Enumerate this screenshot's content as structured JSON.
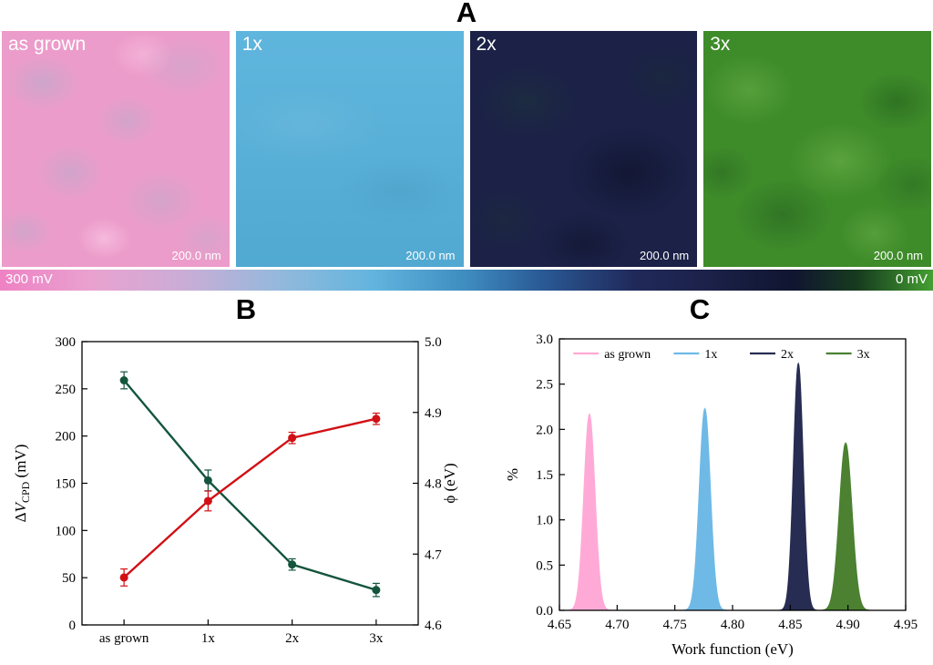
{
  "labels": {
    "a": "A",
    "b": "B",
    "c": "C"
  },
  "panel_a": {
    "images": [
      {
        "label": "as grown",
        "scalebar": "200.0 nm",
        "base_color": "#ec9cca"
      },
      {
        "label": "1x",
        "scalebar": "200.0 nm",
        "base_color": "#55b1db"
      },
      {
        "label": "2x",
        "scalebar": "200.0 nm",
        "base_color": "#1b2147"
      },
      {
        "label": "3x",
        "scalebar": "200.0 nm",
        "base_color": "#3e8b2a"
      }
    ],
    "colorbar": {
      "left_label": "300 mV",
      "right_label": "0 mV"
    }
  },
  "chart_data": [
    {
      "type": "line",
      "panel": "B",
      "categories": [
        "as grown",
        "1x",
        "2x",
        "3x"
      ],
      "left_axis": {
        "label_parts": {
          "pre": "Δ",
          "var": "V",
          "sub": "CPD",
          "post": " (mV)"
        },
        "lim": [
          0,
          300
        ],
        "ticks": [
          "0",
          "50",
          "100",
          "150",
          "200",
          "250",
          "300"
        ],
        "color": "#1b6a43"
      },
      "right_axis": {
        "label": "ϕ (eV)",
        "lim": [
          4.6,
          5.0
        ],
        "ticks": [
          "4.6",
          "4.7",
          "4.8",
          "4.9",
          "5.0"
        ],
        "color": "#d11015"
      },
      "series": [
        {
          "name": "delta-V-CPD",
          "axis": "left",
          "color": "#14553d",
          "values": [
            259,
            153,
            64,
            37
          ],
          "errors": [
            9,
            11,
            6,
            7
          ]
        },
        {
          "name": "work-function-phi",
          "axis": "right",
          "color": "#d11015",
          "values": [
            4.667,
            4.775,
            4.864,
            4.891
          ],
          "errors": [
            0.012,
            0.014,
            0.008,
            0.008
          ]
        }
      ],
      "grid": false
    },
    {
      "type": "area",
      "panel": "C",
      "xlabel": "Work function (eV)",
      "ylabel": "%",
      "xlim": [
        4.65,
        4.95
      ],
      "ylim": [
        0.0,
        3.0
      ],
      "x_ticks": [
        "4.65",
        "4.70",
        "4.75",
        "4.80",
        "4.85",
        "4.90",
        "4.95"
      ],
      "y_ticks": [
        "0.0",
        "0.5",
        "1.0",
        "1.5",
        "2.0",
        "2.5",
        "3.0"
      ],
      "legend": [
        "as grown",
        "1x",
        "2x",
        "3x"
      ],
      "legend_position": "top-inside",
      "peaks": [
        {
          "name": "as grown",
          "center": 4.676,
          "height": 2.17,
          "sigma": 0.0048,
          "color": "#ffaad6"
        },
        {
          "name": "1x",
          "center": 4.776,
          "height": 2.23,
          "sigma": 0.0048,
          "color": "#6fb9e6"
        },
        {
          "name": "2x",
          "center": 4.857,
          "height": 2.73,
          "sigma": 0.0042,
          "color": "#272c52"
        },
        {
          "name": "3x",
          "center": 4.898,
          "height": 1.85,
          "sigma": 0.0055,
          "color": "#4b8130"
        }
      ],
      "grid": false
    }
  ]
}
